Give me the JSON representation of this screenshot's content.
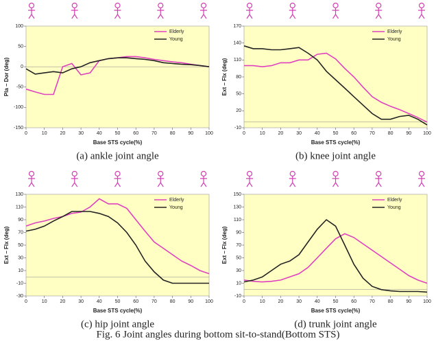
{
  "figure_caption": "Fig. 6 Joint angles during bottom sit-to-stand(Bottom STS)",
  "chart_data": [
    {
      "type": "line",
      "caption": "(a) ankle joint angle",
      "x_label": "Base STS cycle(%)",
      "y_label": "Pla – Dor (deg)",
      "x": [
        0,
        5,
        10,
        15,
        20,
        25,
        30,
        35,
        40,
        45,
        50,
        55,
        60,
        65,
        70,
        75,
        80,
        85,
        90,
        95,
        100
      ],
      "xlim": [
        0,
        100
      ],
      "xticks": [
        0,
        10,
        20,
        30,
        40,
        50,
        60,
        70,
        80,
        90,
        100
      ],
      "ylim": [
        -150,
        100
      ],
      "yticks": [
        -150,
        -100,
        -50,
        0,
        50,
        100
      ],
      "legend": "top-right",
      "series": [
        {
          "name": "Elderly",
          "color": "#e040c0",
          "values": [
            -55,
            -62,
            -68,
            -68,
            0,
            8,
            -20,
            -15,
            15,
            20,
            22,
            25,
            25,
            22,
            18,
            15,
            12,
            10,
            6,
            3,
            0
          ]
        },
        {
          "name": "Young",
          "color": "#222222",
          "values": [
            -5,
            -18,
            -15,
            -12,
            -15,
            -5,
            0,
            10,
            15,
            20,
            22,
            22,
            20,
            18,
            15,
            10,
            8,
            6,
            5,
            3,
            0
          ]
        }
      ]
    },
    {
      "type": "line",
      "caption": "(b) knee joint angle",
      "x_label": "Base STS cycle(%)",
      "y_label": "Ext – Flx (deg)",
      "x": [
        0,
        5,
        10,
        15,
        20,
        25,
        30,
        35,
        40,
        45,
        50,
        55,
        60,
        65,
        70,
        75,
        80,
        85,
        90,
        95,
        100
      ],
      "xlim": [
        0,
        100
      ],
      "xticks": [
        0,
        10,
        20,
        30,
        40,
        50,
        60,
        70,
        80,
        90,
        100
      ],
      "ylim": [
        -10,
        170
      ],
      "yticks": [
        -10,
        20,
        50,
        80,
        110,
        140,
        170
      ],
      "legend": "top-right",
      "series": [
        {
          "name": "Elderly",
          "color": "#e040c0",
          "values": [
            100,
            100,
            98,
            100,
            105,
            105,
            110,
            110,
            120,
            122,
            112,
            95,
            80,
            62,
            45,
            35,
            28,
            22,
            15,
            8,
            0
          ]
        },
        {
          "name": "Young",
          "color": "#222222",
          "values": [
            135,
            130,
            130,
            128,
            128,
            130,
            132,
            122,
            110,
            90,
            75,
            60,
            45,
            30,
            15,
            5,
            5,
            10,
            12,
            5,
            -5
          ]
        }
      ]
    },
    {
      "type": "line",
      "caption": "(c) hip joint angle",
      "x_label": "Base STS cycle(%)",
      "y_label": "Ext – Flx (deg)",
      "x": [
        0,
        5,
        10,
        15,
        20,
        25,
        30,
        35,
        40,
        45,
        50,
        55,
        60,
        65,
        70,
        75,
        80,
        85,
        90,
        95,
        100
      ],
      "xlim": [
        0,
        100
      ],
      "xticks": [
        0,
        10,
        20,
        30,
        40,
        50,
        60,
        70,
        80,
        90,
        100
      ],
      "ylim": [
        -30,
        130
      ],
      "yticks": [
        -30,
        -10,
        10,
        30,
        50,
        70,
        90,
        110,
        130
      ],
      "legend": "top-right",
      "series": [
        {
          "name": "Elderly",
          "color": "#e040c0",
          "values": [
            80,
            85,
            88,
            92,
            95,
            100,
            102,
            110,
            123,
            115,
            115,
            108,
            90,
            72,
            55,
            45,
            35,
            25,
            18,
            10,
            5
          ]
        },
        {
          "name": "Young",
          "color": "#222222",
          "values": [
            72,
            75,
            80,
            88,
            95,
            103,
            103,
            103,
            100,
            95,
            85,
            70,
            50,
            25,
            8,
            -5,
            -10,
            -10,
            -10,
            -10,
            -10
          ]
        }
      ]
    },
    {
      "type": "line",
      "caption": "(d) trunk joint angle",
      "x_label": "Base STS cycle(%)",
      "y_label": "Ext – Flx (deg)",
      "x": [
        0,
        5,
        10,
        15,
        20,
        25,
        30,
        35,
        40,
        45,
        50,
        55,
        60,
        65,
        70,
        75,
        80,
        85,
        90,
        95,
        100
      ],
      "xlim": [
        0,
        100
      ],
      "xticks": [
        0,
        10,
        20,
        30,
        40,
        50,
        60,
        70,
        80,
        90,
        100
      ],
      "ylim": [
        -10,
        150
      ],
      "yticks": [
        -10,
        10,
        30,
        50,
        70,
        90,
        110,
        130,
        150
      ],
      "legend": "top-right",
      "series": [
        {
          "name": "Elderly",
          "color": "#e040c0",
          "values": [
            15,
            13,
            12,
            13,
            15,
            20,
            25,
            35,
            50,
            65,
            80,
            88,
            82,
            72,
            62,
            52,
            42,
            32,
            22,
            15,
            10
          ]
        },
        {
          "name": "Young",
          "color": "#222222",
          "values": [
            12,
            15,
            20,
            30,
            40,
            45,
            55,
            75,
            95,
            110,
            100,
            70,
            40,
            18,
            5,
            0,
            -2,
            -3,
            -3,
            -3,
            -4
          ]
        }
      ]
    }
  ]
}
